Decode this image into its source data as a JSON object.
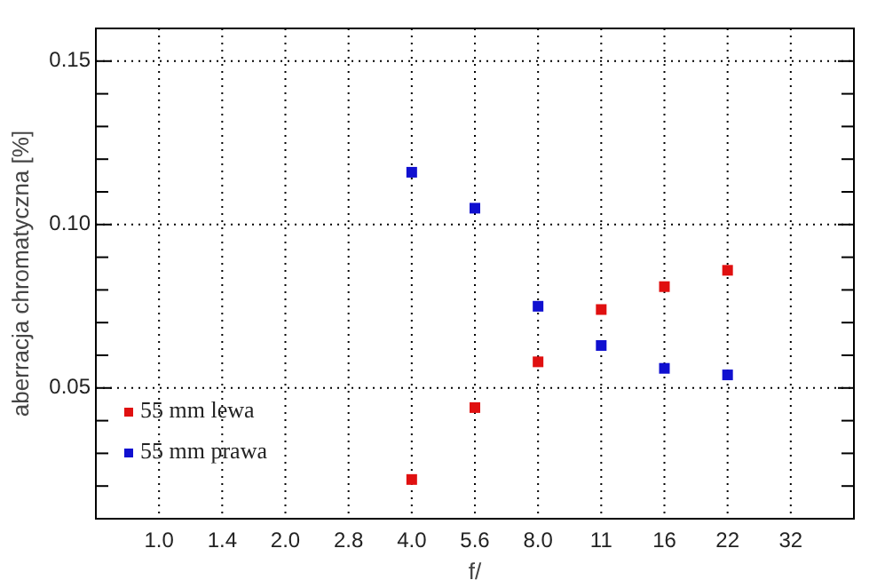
{
  "chart_data": {
    "type": "scatter",
    "xlabel": "f/",
    "ylabel": "aberracja chromatyczna [%]",
    "categories": [
      "1.0",
      "1.4",
      "2.0",
      "2.8",
      "4.0",
      "5.6",
      "8.0",
      "11",
      "16",
      "22",
      "32"
    ],
    "series": [
      {
        "name": "55 mm lewa",
        "color": "#e01010",
        "values": [
          null,
          null,
          null,
          null,
          0.022,
          0.044,
          0.058,
          0.074,
          0.081,
          0.086,
          null
        ]
      },
      {
        "name": "55 mm prawa",
        "color": "#1010d0",
        "values": [
          null,
          null,
          null,
          null,
          0.116,
          0.105,
          0.075,
          0.063,
          0.056,
          0.054,
          null
        ]
      }
    ],
    "ylim": [
      0.01,
      0.16
    ],
    "yticks": [
      {
        "value": 0.02,
        "label": null
      },
      {
        "value": 0.03,
        "label": null
      },
      {
        "value": 0.04,
        "label": null
      },
      {
        "value": 0.05,
        "label": "0.05"
      },
      {
        "value": 0.06,
        "label": null
      },
      {
        "value": 0.07,
        "label": null
      },
      {
        "value": 0.08,
        "label": null
      },
      {
        "value": 0.09,
        "label": null
      },
      {
        "value": 0.1,
        "label": "0.10"
      },
      {
        "value": 0.11,
        "label": null
      },
      {
        "value": 0.12,
        "label": null
      },
      {
        "value": 0.13,
        "label": null
      },
      {
        "value": 0.14,
        "label": null
      },
      {
        "value": 0.15,
        "label": "0.15"
      }
    ],
    "grid": true,
    "legend": "bottom left",
    "marker": "square"
  }
}
